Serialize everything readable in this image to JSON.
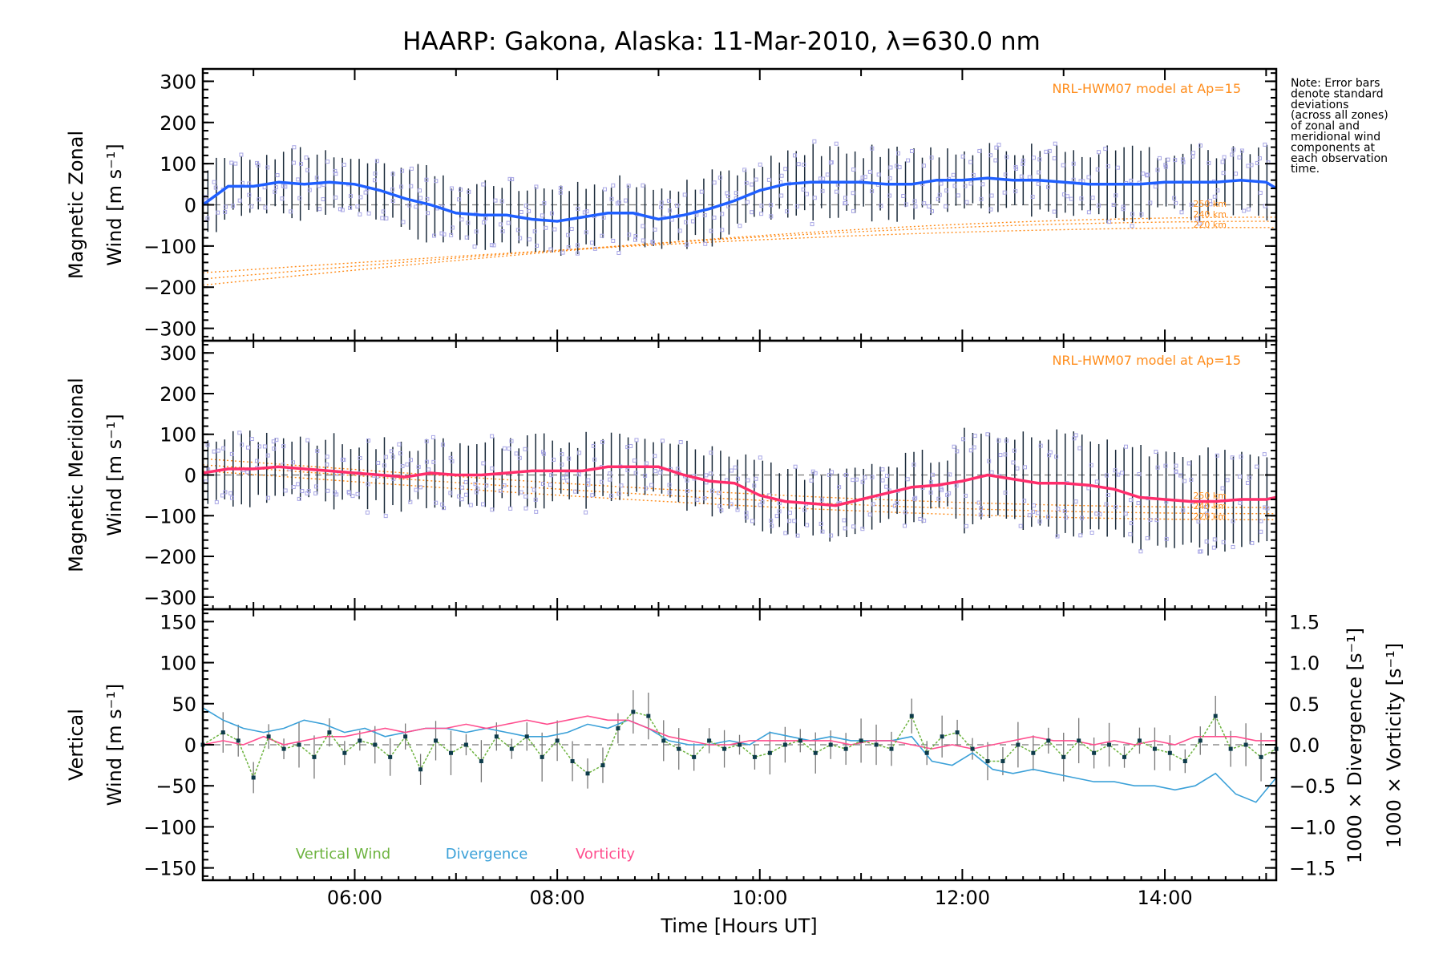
{
  "title": "HAARP: Gakona,  Alaska: 11-Mar-2010, λ=630.0 nm",
  "note": [
    "Note: Error bars",
    "denote standard",
    "deviations",
    "(across all zones)",
    "of zonal and",
    "meridional wind",
    "components at",
    "each observation",
    "time."
  ],
  "xlabel": "Time [Hours UT]",
  "x_ticks": [
    "06:00",
    "08:00",
    "10:00",
    "12:00",
    "14:00"
  ],
  "colors": {
    "zonal": "#1f5fff",
    "meridional": "#ff2d6b",
    "vertical": "#6db33f",
    "divergence": "#3aa0d8",
    "vorticity": "#ff4f8f",
    "model": "#ff8c1a",
    "scatter": "#a9a7e6",
    "errorbar": "#1a2a3a"
  },
  "chart_data": [
    {
      "type": "line",
      "panel": "zonal",
      "ylabel_line1": "Magnetic Zonal",
      "ylabel_line2": "Wind [m s⁻¹]",
      "model_label": "NRL-HWM07 model at Ap=15",
      "model_altitudes": [
        "250 km",
        "240 km",
        "220 km"
      ],
      "ylim": [
        -330,
        330
      ],
      "y_ticks": [
        300,
        200,
        100,
        0,
        -100,
        -200,
        -300
      ],
      "xlim": [
        4.5,
        15.1
      ],
      "x": [
        4.5,
        4.75,
        5.0,
        5.25,
        5.5,
        5.75,
        6.0,
        6.25,
        6.5,
        6.75,
        7.0,
        7.25,
        7.5,
        7.75,
        8.0,
        8.25,
        8.5,
        8.75,
        9.0,
        9.25,
        9.5,
        9.75,
        10.0,
        10.25,
        10.5,
        10.75,
        11.0,
        11.25,
        11.5,
        11.75,
        12.0,
        12.25,
        12.5,
        12.75,
        13.0,
        13.25,
        13.5,
        13.75,
        14.0,
        14.25,
        14.5,
        14.75,
        15.0,
        15.1
      ],
      "values": [
        0,
        45,
        45,
        55,
        50,
        55,
        50,
        35,
        15,
        0,
        -20,
        -25,
        -25,
        -35,
        -40,
        -30,
        -20,
        -20,
        -35,
        -25,
        -10,
        10,
        35,
        50,
        55,
        55,
        55,
        50,
        50,
        60,
        60,
        65,
        60,
        60,
        55,
        50,
        50,
        50,
        55,
        55,
        55,
        60,
        55,
        40
      ]
    },
    {
      "type": "line",
      "panel": "meridional",
      "ylabel_line1": "Magnetic Meridional",
      "ylabel_line2": "Wind [m s⁻¹]",
      "model_label": "NRL-HWM07 model at Ap=15",
      "model_altitudes": [
        "250 km",
        "240 km",
        "220 km"
      ],
      "ylim": [
        -330,
        330
      ],
      "y_ticks": [
        300,
        200,
        100,
        0,
        -100,
        -200,
        -300
      ],
      "xlim": [
        4.5,
        15.1
      ],
      "x": [
        4.5,
        4.75,
        5.0,
        5.25,
        5.5,
        5.75,
        6.0,
        6.25,
        6.5,
        6.75,
        7.0,
        7.25,
        7.5,
        7.75,
        8.0,
        8.25,
        8.5,
        8.75,
        9.0,
        9.25,
        9.5,
        9.75,
        10.0,
        10.25,
        10.5,
        10.75,
        11.0,
        11.25,
        11.5,
        11.75,
        12.0,
        12.25,
        12.5,
        12.75,
        13.0,
        13.25,
        13.5,
        13.75,
        14.0,
        14.25,
        14.5,
        14.75,
        15.0,
        15.1
      ],
      "values": [
        5,
        15,
        15,
        20,
        15,
        10,
        5,
        0,
        -5,
        5,
        0,
        0,
        5,
        10,
        10,
        10,
        20,
        20,
        20,
        0,
        -15,
        -20,
        -50,
        -65,
        -70,
        -75,
        -60,
        -45,
        -30,
        -25,
        -15,
        0,
        -10,
        -20,
        -20,
        -25,
        -35,
        -55,
        -60,
        -65,
        -65,
        -60,
        -60,
        -55
      ]
    },
    {
      "type": "line",
      "panel": "vertical",
      "ylabel_line1": "Vertical",
      "ylabel_line2": "Wind [m s⁻¹]",
      "ylim": [
        -165,
        165
      ],
      "y_ticks": [
        150,
        100,
        50,
        0,
        -50,
        -100,
        -150
      ],
      "y2lim": [
        -1.65,
        1.65
      ],
      "y2_ticks": [
        "1.5",
        "1.0",
        "0.5",
        "0.0",
        "−0.5",
        "−1.0",
        "−1.5"
      ],
      "y2label_div": "1000 × Divergence [s⁻¹]",
      "y2label_vor": "1000 × Vorticity [s⁻¹]",
      "xlim": [
        4.5,
        15.1
      ],
      "legend": [
        "Vertical Wind",
        "Divergence",
        "Vorticity"
      ],
      "series": [
        {
          "name": "Vertical Wind",
          "x": [
            4.5,
            4.7,
            4.85,
            5.0,
            5.15,
            5.3,
            5.45,
            5.6,
            5.75,
            5.9,
            6.05,
            6.2,
            6.35,
            6.5,
            6.65,
            6.8,
            6.95,
            7.1,
            7.25,
            7.4,
            7.55,
            7.7,
            7.85,
            8.0,
            8.15,
            8.3,
            8.45,
            8.6,
            8.75,
            8.9,
            9.05,
            9.2,
            9.35,
            9.5,
            9.65,
            9.8,
            9.95,
            10.1,
            10.25,
            10.4,
            10.55,
            10.7,
            10.85,
            11.0,
            11.15,
            11.3,
            11.5,
            11.65,
            11.8,
            11.95,
            12.1,
            12.25,
            12.4,
            12.55,
            12.7,
            12.85,
            13.0,
            13.15,
            13.3,
            13.45,
            13.6,
            13.75,
            13.9,
            14.05,
            14.2,
            14.35,
            14.5,
            14.65,
            14.8,
            14.95,
            15.1
          ],
          "values": [
            0,
            15,
            5,
            -40,
            10,
            -5,
            0,
            -15,
            15,
            -10,
            5,
            0,
            -15,
            10,
            -30,
            5,
            -10,
            0,
            -20,
            10,
            -5,
            10,
            -15,
            5,
            -20,
            -35,
            -25,
            20,
            40,
            35,
            5,
            -5,
            -15,
            5,
            -5,
            0,
            -15,
            -10,
            0,
            5,
            -10,
            0,
            -5,
            5,
            0,
            -5,
            35,
            -10,
            10,
            15,
            -5,
            -20,
            -20,
            0,
            -10,
            5,
            -15,
            5,
            -10,
            0,
            -15,
            5,
            -5,
            -10,
            -20,
            5,
            35,
            -5,
            0,
            -15,
            -5
          ]
        },
        {
          "name": "Divergence",
          "x": [
            4.5,
            4.7,
            4.9,
            5.1,
            5.3,
            5.5,
            5.7,
            5.9,
            6.1,
            6.3,
            6.5,
            6.7,
            6.9,
            7.1,
            7.3,
            7.5,
            7.7,
            7.9,
            8.1,
            8.3,
            8.5,
            8.7,
            8.9,
            9.1,
            9.3,
            9.5,
            9.7,
            9.9,
            10.1,
            10.3,
            10.5,
            10.7,
            10.9,
            11.1,
            11.3,
            11.5,
            11.7,
            11.9,
            12.1,
            12.3,
            12.5,
            12.7,
            12.9,
            13.1,
            13.3,
            13.5,
            13.7,
            13.9,
            14.1,
            14.3,
            14.5,
            14.7,
            14.9,
            15.1
          ],
          "values": [
            0.45,
            0.3,
            0.2,
            0.15,
            0.2,
            0.3,
            0.25,
            0.15,
            0.2,
            0.1,
            0.15,
            0.2,
            0.2,
            0.15,
            0.2,
            0.15,
            0.1,
            0.1,
            0.15,
            0.25,
            0.2,
            0.3,
            0.2,
            0.05,
            0.0,
            0.0,
            0.05,
            0.0,
            0.15,
            0.1,
            0.05,
            0.1,
            0.05,
            0.05,
            0.05,
            0.1,
            -0.2,
            -0.25,
            -0.1,
            -0.3,
            -0.35,
            -0.3,
            -0.35,
            -0.4,
            -0.45,
            -0.45,
            -0.5,
            -0.5,
            -0.55,
            -0.5,
            -0.35,
            -0.6,
            -0.7,
            -0.4
          ]
        },
        {
          "name": "Vorticity",
          "x": [
            4.5,
            4.7,
            4.9,
            5.1,
            5.3,
            5.5,
            5.7,
            5.9,
            6.1,
            6.3,
            6.5,
            6.7,
            6.9,
            7.1,
            7.3,
            7.5,
            7.7,
            7.9,
            8.1,
            8.3,
            8.5,
            8.7,
            8.9,
            9.1,
            9.3,
            9.5,
            9.7,
            9.9,
            10.1,
            10.3,
            10.5,
            10.7,
            10.9,
            11.1,
            11.3,
            11.5,
            11.7,
            11.9,
            12.1,
            12.3,
            12.5,
            12.7,
            12.9,
            13.1,
            13.3,
            13.5,
            13.7,
            13.9,
            14.1,
            14.3,
            14.5,
            14.7,
            14.9,
            15.1
          ],
          "values": [
            0.0,
            0.05,
            0.0,
            0.1,
            0.0,
            0.05,
            0.1,
            0.1,
            0.15,
            0.2,
            0.15,
            0.2,
            0.2,
            0.25,
            0.2,
            0.25,
            0.3,
            0.25,
            0.3,
            0.35,
            0.3,
            0.3,
            0.2,
            0.1,
            0.05,
            0.0,
            0.0,
            0.05,
            0.05,
            0.05,
            0.05,
            0.05,
            0.0,
            0.05,
            0.05,
            0.0,
            -0.05,
            0.0,
            -0.05,
            0.0,
            0.05,
            0.1,
            0.05,
            0.05,
            0.0,
            0.05,
            0.0,
            0.05,
            0.0,
            0.1,
            0.1,
            0.1,
            0.05,
            0.05
          ]
        }
      ]
    }
  ]
}
